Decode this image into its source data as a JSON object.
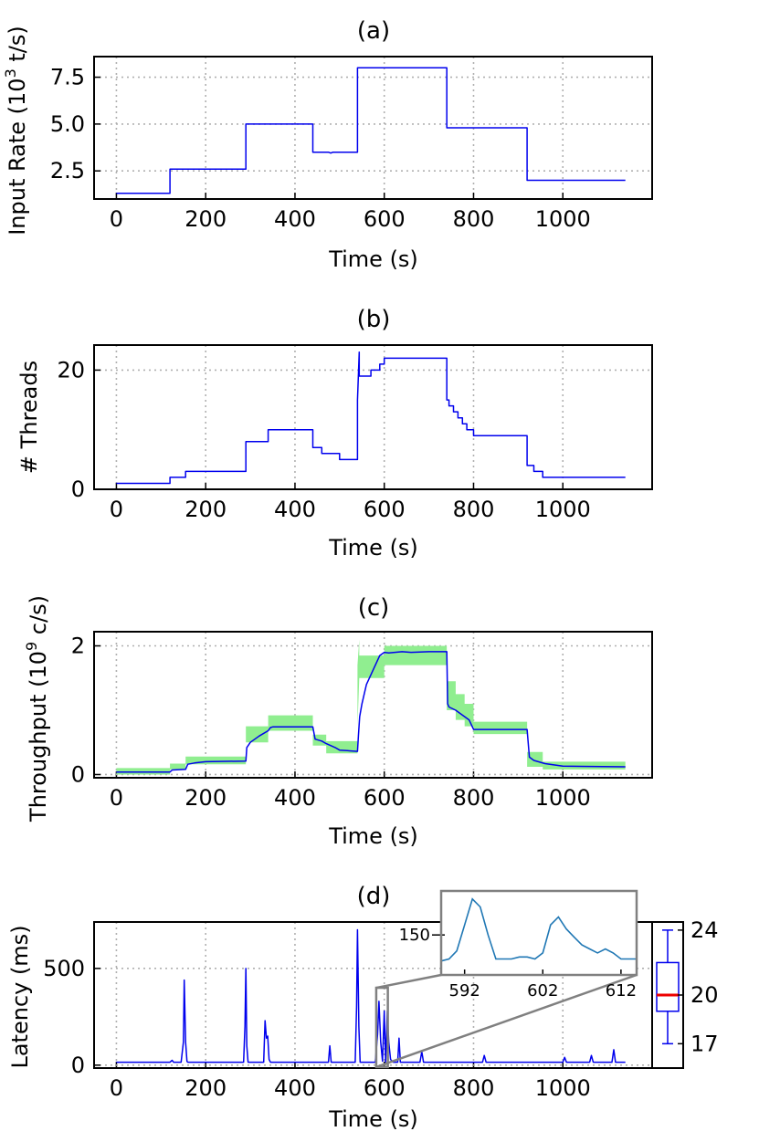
{
  "chart_data": [
    {
      "type": "line",
      "title": "(a)",
      "xlabel": "Time (s)",
      "ylabel": "Input Rate (10^3 t/s)",
      "ylabel_parts": {
        "base": "Input Rate (10",
        "sup": "3",
        "tail": " t/s)"
      },
      "xlim": [
        -50,
        1200
      ],
      "ylim": [
        1.0,
        8.6
      ],
      "xticks": [
        0,
        200,
        400,
        600,
        800,
        1000
      ],
      "xtick_labels": [
        "0",
        "200",
        "400",
        "600",
        "800",
        "1000"
      ],
      "yticks": [
        2.5,
        5.0,
        7.5
      ],
      "ytick_labels": [
        "2.5",
        "5.0",
        "7.5"
      ],
      "series": [
        {
          "name": "input rate",
          "color": "#0000ee",
          "x": [
            0,
            120,
            120,
            290,
            290,
            440,
            440,
            475,
            480,
            485,
            540,
            540,
            740,
            740,
            920,
            920,
            1140
          ],
          "y": [
            1.3,
            1.3,
            2.6,
            2.6,
            5.0,
            5.0,
            3.5,
            3.5,
            3.45,
            3.5,
            3.5,
            8.0,
            8.0,
            4.8,
            4.8,
            2.0,
            2.0
          ]
        }
      ]
    },
    {
      "type": "line",
      "title": "(b)",
      "xlabel": "Time (s)",
      "ylabel": "# Threads",
      "xlim": [
        -50,
        1200
      ],
      "ylim": [
        0,
        24.2
      ],
      "xticks": [
        0,
        200,
        400,
        600,
        800,
        1000
      ],
      "xtick_labels": [
        "0",
        "200",
        "400",
        "600",
        "800",
        "1000"
      ],
      "yticks": [
        0,
        20
      ],
      "ytick_labels": [
        "0",
        "20"
      ],
      "series": [
        {
          "name": "threads",
          "color": "#0000ee",
          "x": [
            0,
            120,
            120,
            155,
            155,
            290,
            290,
            340,
            340,
            440,
            440,
            460,
            460,
            500,
            500,
            540,
            540,
            544,
            544,
            570,
            570,
            590,
            590,
            600,
            600,
            740,
            740,
            745,
            745,
            755,
            755,
            765,
            765,
            775,
            775,
            785,
            785,
            800,
            800,
            920,
            920,
            935,
            935,
            955,
            955,
            1140
          ],
          "y": [
            1,
            1,
            2,
            2,
            3,
            3,
            8,
            8,
            10,
            10,
            7,
            7,
            6,
            6,
            5,
            5,
            15,
            23,
            19,
            19,
            20,
            20,
            21,
            21,
            22,
            22,
            15,
            15,
            14,
            14,
            13,
            13,
            12,
            12,
            11,
            11,
            10,
            10,
            9,
            9,
            4,
            4,
            3,
            3,
            2,
            2
          ]
        }
      ]
    },
    {
      "type": "area",
      "title": "(c)",
      "xlabel": "Time (s)",
      "ylabel": "Throughput (10^9 c/s)",
      "ylabel_parts": {
        "base": "Throughput (10",
        "sup": "9",
        "tail": " c/s)"
      },
      "xlim": [
        -50,
        1200
      ],
      "ylim": [
        -0.05,
        2.22
      ],
      "xticks": [
        0,
        200,
        400,
        600,
        800,
        1000
      ],
      "xtick_labels": [
        "0",
        "200",
        "400",
        "600",
        "800",
        "1000"
      ],
      "yticks": [
        0,
        2
      ],
      "ytick_labels": [
        "0",
        "2"
      ],
      "band": {
        "name": "range",
        "color": "#90ee90",
        "x": [
          0,
          120,
          120,
          155,
          155,
          290,
          290,
          340,
          340,
          440,
          440,
          470,
          470,
          540,
          540,
          544,
          544,
          600,
          600,
          740,
          740,
          760,
          760,
          780,
          780,
          800,
          800,
          920,
          920,
          955,
          955,
          1140
        ],
        "lo": [
          0.0,
          0.0,
          0.08,
          0.08,
          0.16,
          0.16,
          0.5,
          0.5,
          0.68,
          0.68,
          0.45,
          0.45,
          0.33,
          0.33,
          0.75,
          1.5,
          1.5,
          1.5,
          1.7,
          1.7,
          1.0,
          1.0,
          0.85,
          0.85,
          0.75,
          0.75,
          0.63,
          0.63,
          0.12,
          0.12,
          0.08,
          0.08
        ],
        "hi": [
          0.1,
          0.1,
          0.17,
          0.17,
          0.28,
          0.28,
          0.75,
          0.75,
          0.92,
          0.92,
          0.62,
          0.62,
          0.52,
          0.52,
          1.7,
          2.1,
          1.85,
          1.85,
          2.0,
          2.0,
          1.45,
          1.45,
          1.25,
          1.25,
          1.1,
          1.1,
          0.82,
          0.82,
          0.35,
          0.35,
          0.2,
          0.2
        ]
      },
      "series": [
        {
          "name": "throughput",
          "color": "#0000ee",
          "x": [
            0,
            120,
            125,
            155,
            160,
            175,
            200,
            290,
            292,
            300,
            320,
            340,
            345,
            350,
            440,
            445,
            460,
            470,
            490,
            500,
            540,
            542,
            545,
            550,
            560,
            590,
            600,
            610,
            640,
            660,
            700,
            740,
            742,
            745,
            760,
            790,
            800,
            830,
            870,
            920,
            925,
            935,
            960,
            1000,
            1140
          ],
          "y": [
            0.04,
            0.04,
            0.07,
            0.08,
            0.16,
            0.18,
            0.2,
            0.21,
            0.42,
            0.5,
            0.6,
            0.68,
            0.73,
            0.74,
            0.74,
            0.55,
            0.52,
            0.48,
            0.42,
            0.38,
            0.36,
            0.6,
            0.9,
            1.1,
            1.4,
            1.85,
            1.9,
            1.89,
            1.91,
            1.9,
            1.91,
            1.91,
            1.1,
            1.05,
            1.0,
            0.85,
            0.7,
            0.7,
            0.7,
            0.7,
            0.27,
            0.22,
            0.17,
            0.13,
            0.12
          ]
        }
      ]
    },
    {
      "type": "line",
      "title": "(d)",
      "xlabel": "Time (s)",
      "ylabel": "Latency (ms)",
      "xlim": [
        -50,
        1200
      ],
      "ylim": [
        -15,
        740
      ],
      "xticks": [
        0,
        200,
        400,
        600,
        800,
        1000
      ],
      "xtick_labels": [
        "0",
        "200",
        "400",
        "600",
        "800",
        "1000"
      ],
      "yticks": [
        0,
        500
      ],
      "ytick_labels": [
        "0",
        "500"
      ],
      "series": [
        {
          "name": "latency",
          "color": "#0000ee",
          "x": [
            0,
            120,
            125,
            128,
            145,
            150,
            152,
            155,
            158,
            160,
            285,
            288,
            290,
            292,
            295,
            330,
            333,
            336,
            339,
            342,
            345,
            475,
            478,
            481,
            535,
            538,
            540,
            543,
            546,
            580,
            585,
            588,
            592,
            596,
            600,
            603,
            607,
            610,
            614,
            620,
            630,
            633,
            636,
            680,
            684,
            688,
            820,
            824,
            828,
            1000,
            1004,
            1008,
            1060,
            1064,
            1068,
            1110,
            1114,
            1118,
            1140
          ],
          "y": [
            15,
            15,
            25,
            15,
            15,
            120,
            440,
            120,
            20,
            15,
            15,
            200,
            500,
            100,
            15,
            15,
            230,
            140,
            150,
            30,
            15,
            15,
            100,
            15,
            15,
            300,
            700,
            200,
            15,
            15,
            160,
            330,
            120,
            20,
            280,
            15,
            280,
            120,
            30,
            15,
            15,
            140,
            15,
            15,
            70,
            15,
            15,
            50,
            15,
            15,
            40,
            15,
            15,
            50,
            15,
            15,
            80,
            15,
            15
          ]
        }
      ],
      "inset": {
        "xlim": [
          589,
          614
        ],
        "ylim": [
          130,
          172
        ],
        "xticks": [
          592,
          602,
          612
        ],
        "xtick_labels": [
          "592",
          "602",
          "612"
        ],
        "yticks": [
          150
        ],
        "ytick_labels": [
          "150"
        ],
        "series_color": "#1f77b4",
        "x": [
          589,
          590,
          591,
          592,
          593,
          594,
          595,
          596,
          597,
          598,
          599,
          600,
          601,
          602,
          603,
          604,
          605,
          606,
          607,
          608,
          609,
          610,
          611,
          612,
          613,
          614
        ],
        "y": [
          137,
          138,
          142,
          155,
          168,
          164,
          150,
          138,
          138,
          138,
          139,
          139,
          138,
          141,
          155,
          159,
          153,
          149,
          145,
          143,
          141,
          143,
          141,
          138,
          138,
          138
        ]
      },
      "boxplot": {
        "whisker_low": 17,
        "q1": 19,
        "median": 20,
        "q3": 22,
        "whisker_high": 24,
        "ylim": [
          15.5,
          24.5
        ],
        "ytick_labels": [
          "17",
          "20",
          "24"
        ],
        "yticks": [
          17,
          20,
          24
        ],
        "box_color": "#0000ee",
        "median_color": "#ee0000"
      }
    }
  ]
}
